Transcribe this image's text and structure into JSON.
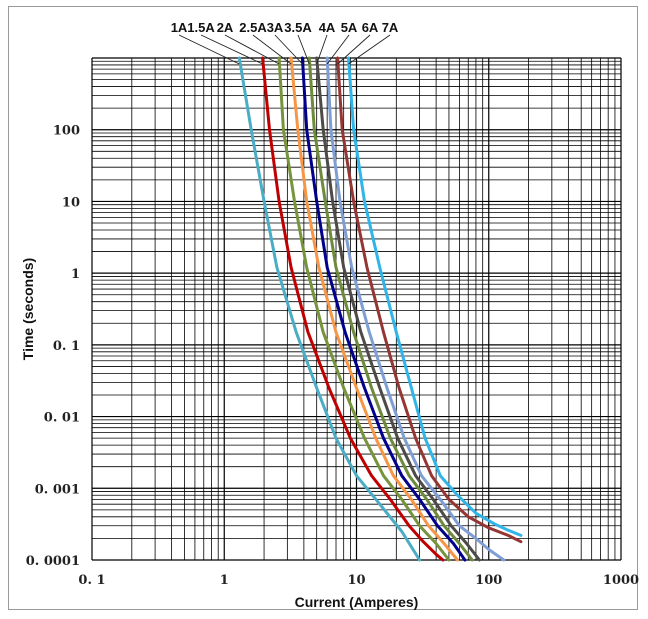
{
  "chart_data": {
    "type": "line",
    "title": "",
    "xlabel": "Current (Amperes)",
    "ylabel": "Time (seconds)",
    "x_scale": "log",
    "y_scale": "log",
    "xlim": [
      0.1,
      1000
    ],
    "ylim": [
      0.0001,
      1000
    ],
    "grid": true,
    "legend_position": "top",
    "x_tick_labels": [
      "0. 1",
      "1",
      "10",
      "100",
      "1000"
    ],
    "y_tick_labels": [
      "0. 0001",
      "0. 001",
      "0. 01",
      "0. 1",
      "1",
      "10",
      "100"
    ],
    "series": [
      {
        "name": "1A",
        "color": "#4bacc6",
        "x": [
          1.3,
          1.6,
          2.0,
          2.5,
          3.5,
          5.0,
          7.0,
          10,
          15,
          22,
          30
        ],
        "y": [
          1000,
          100,
          10,
          1.2,
          0.15,
          0.025,
          0.005,
          0.0015,
          0.0006,
          0.00025,
          0.0001
        ]
      },
      {
        "name": "1.5A",
        "color": "#c00000",
        "x": [
          1.95,
          2.2,
          2.6,
          3.2,
          4.3,
          6.2,
          9.0,
          13,
          18,
          25,
          32,
          40,
          45
        ],
        "y": [
          1000,
          100,
          10,
          1.2,
          0.15,
          0.025,
          0.005,
          0.0015,
          0.0007,
          0.0003,
          0.00018,
          0.00012,
          0.0001
        ]
      },
      {
        "name": "2A",
        "color": "#77933c",
        "x": [
          2.6,
          2.8,
          3.4,
          4.2,
          5.6,
          8.0,
          11.5,
          16,
          22,
          30,
          40,
          50
        ],
        "y": [
          1000,
          100,
          10,
          1.2,
          0.15,
          0.025,
          0.005,
          0.0015,
          0.0007,
          0.0003,
          0.00017,
          0.0001
        ]
      },
      {
        "name": "2.5A",
        "color": "#f79646",
        "x": [
          3.2,
          3.6,
          4.2,
          5.2,
          7.0,
          10,
          14,
          19,
          26,
          35,
          46,
          58
        ],
        "y": [
          1000,
          100,
          10,
          1.2,
          0.15,
          0.025,
          0.005,
          0.0015,
          0.0007,
          0.0003,
          0.00017,
          0.0001
        ]
      },
      {
        "name": "3A",
        "color": "#00008b",
        "x": [
          3.9,
          4.2,
          5.0,
          6.0,
          8.2,
          11.5,
          16,
          22,
          30,
          41,
          54,
          66
        ],
        "y": [
          1000,
          100,
          10,
          1.2,
          0.15,
          0.025,
          0.005,
          0.0015,
          0.0007,
          0.0003,
          0.00017,
          0.0001
        ]
      },
      {
        "name": "3.5A",
        "color": "#6e8b3d",
        "x": [
          4.4,
          4.8,
          5.8,
          7.0,
          9.5,
          13,
          18,
          25,
          34,
          46,
          60,
          75
        ],
        "y": [
          1000,
          100,
          10,
          1.2,
          0.15,
          0.025,
          0.005,
          0.0015,
          0.0007,
          0.0003,
          0.00017,
          0.0001
        ]
      },
      {
        "name": "4A",
        "color": "#4d4b47",
        "x": [
          5.0,
          5.6,
          6.6,
          8.0,
          10.8,
          15,
          20.5,
          28,
          38,
          52,
          68,
          85
        ],
        "y": [
          1000,
          100,
          10,
          1.2,
          0.15,
          0.025,
          0.005,
          0.0015,
          0.0007,
          0.0003,
          0.00017,
          0.0001
        ]
      },
      {
        "name": "5A",
        "color": "#7f9fd4",
        "x": [
          6.0,
          6.4,
          7.5,
          9.2,
          12.5,
          17,
          23,
          31,
          43,
          60,
          80,
          100,
          130
        ],
        "y": [
          1000,
          100,
          10,
          1.2,
          0.15,
          0.025,
          0.005,
          0.0015,
          0.0007,
          0.0003,
          0.0002,
          0.00014,
          0.0001
        ]
      },
      {
        "name": "6A",
        "color": "#943634",
        "x": [
          7.2,
          7.8,
          9.5,
          12,
          16,
          21,
          28,
          37,
          50,
          70,
          100,
          140,
          175
        ],
        "y": [
          1000,
          100,
          10,
          1.2,
          0.15,
          0.025,
          0.005,
          0.0015,
          0.0007,
          0.0004,
          0.00028,
          0.00022,
          0.00018
        ]
      },
      {
        "name": "7A",
        "color": "#31b5e8",
        "x": [
          8.7,
          9.5,
          11.5,
          15,
          20,
          26,
          33,
          43,
          58,
          80,
          110,
          140,
          175
        ],
        "y": [
          1000,
          100,
          10,
          1.2,
          0.15,
          0.025,
          0.005,
          0.0015,
          0.0008,
          0.00045,
          0.00032,
          0.00026,
          0.00022
        ]
      }
    ]
  }
}
